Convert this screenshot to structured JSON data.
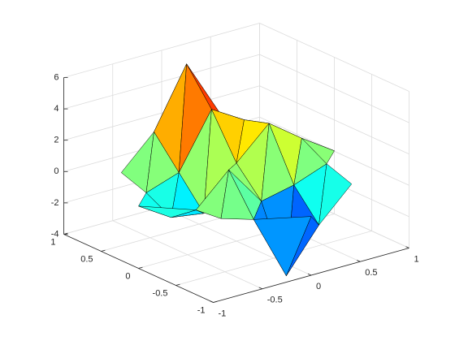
{
  "chart_data": {
    "type": "surface",
    "x": [
      -1,
      -0.667,
      -0.333,
      0,
      0.333,
      0.667,
      1
    ],
    "y": [
      -1,
      -0.667,
      -0.333,
      0,
      0.333,
      0.667,
      1
    ],
    "z": [
      [
        null,
        null,
        null,
        -0.25,
        null,
        null,
        null
      ],
      [
        null,
        0.05,
        -0.59,
        -4.76,
        -2.1,
        -0.06,
        null
      ],
      [
        null,
        -0.13,
        1.85,
        -0.73,
        -0.27,
        0.5,
        null
      ],
      [
        -0.03,
        -1.33,
        -1.65,
        0.98,
        2.94,
        1.41,
        0.03
      ],
      [
        null,
        -0.48,
        0.23,
        3.69,
        2.44,
        0.58,
        null
      ],
      [
        null,
        0.08,
        2.1,
        5.86,
        2.21,
        0.13,
        null
      ],
      [
        null,
        null,
        null,
        0.3,
        null,
        null,
        null
      ]
    ],
    "xlim": [
      -1,
      1
    ],
    "ylim": [
      -1,
      1
    ],
    "zlim": [
      -4,
      6
    ],
    "xticks": [
      -1,
      -0.5,
      0,
      0.5,
      1
    ],
    "yticks": [
      -1,
      -0.5,
      0,
      0.5,
      1
    ],
    "zticks": [
      -4,
      -2,
      0,
      2,
      4,
      6
    ],
    "grid": true,
    "colormap": "jet",
    "edge_color": "#000000"
  }
}
